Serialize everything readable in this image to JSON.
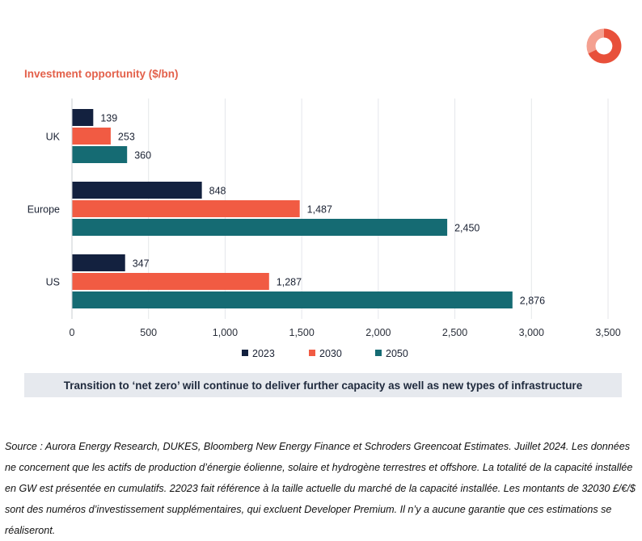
{
  "brand": {
    "logo_icon": "ring-logo-icon",
    "accent": "#e3604a"
  },
  "chart_data": {
    "type": "bar",
    "orientation": "horizontal",
    "title": "Investment opportunity ($/bn)",
    "categories": [
      "UK",
      "Europe",
      "US"
    ],
    "series": [
      {
        "name": "2023",
        "color": "#13213f",
        "values": [
          139,
          848,
          347
        ],
        "labels": [
          "139",
          "848",
          "347"
        ]
      },
      {
        "name": "2030",
        "color": "#f15b43",
        "values": [
          253,
          1487,
          1287
        ],
        "labels": [
          "253",
          "1,487",
          "1,287"
        ]
      },
      {
        "name": "2050",
        "color": "#156b73",
        "values": [
          360,
          2450,
          2876
        ],
        "labels": [
          "360",
          "2,450",
          "2,876"
        ]
      }
    ],
    "xlim": [
      0,
      3500
    ],
    "xticks": [
      0,
      500,
      1000,
      1500,
      2000,
      2500,
      3000,
      3500
    ],
    "xtick_labels": [
      "0",
      "500",
      "1,000",
      "1,500",
      "2,000",
      "2,500",
      "3,000",
      "3,500"
    ],
    "grid": true,
    "legend_position": "bottom"
  },
  "banner": {
    "text": "Transition to ‘net zero’ will continue to deliver further capacity as well as new types of infrastructure"
  },
  "footnote": {
    "text": "Source : Aurora Energy Research, DUKES, Bloomberg New Energy Finance et Schroders Greencoat Estimates. Juillet 2024. Les données ne concernent que les actifs de production d’énergie éolienne, solaire et hydrogène terrestres et offshore. La totalité de la capacité installée en GW est présentée en cumulatifs. 22023 fait référence à la taille actuelle du marché de la capacité installée. Les montants de 32030  £/€/$ sont des numéros d’investissement supplémentaires, qui excluent Developer Premium. Il n’y a aucune garantie que ces estimations se réaliseront."
  }
}
